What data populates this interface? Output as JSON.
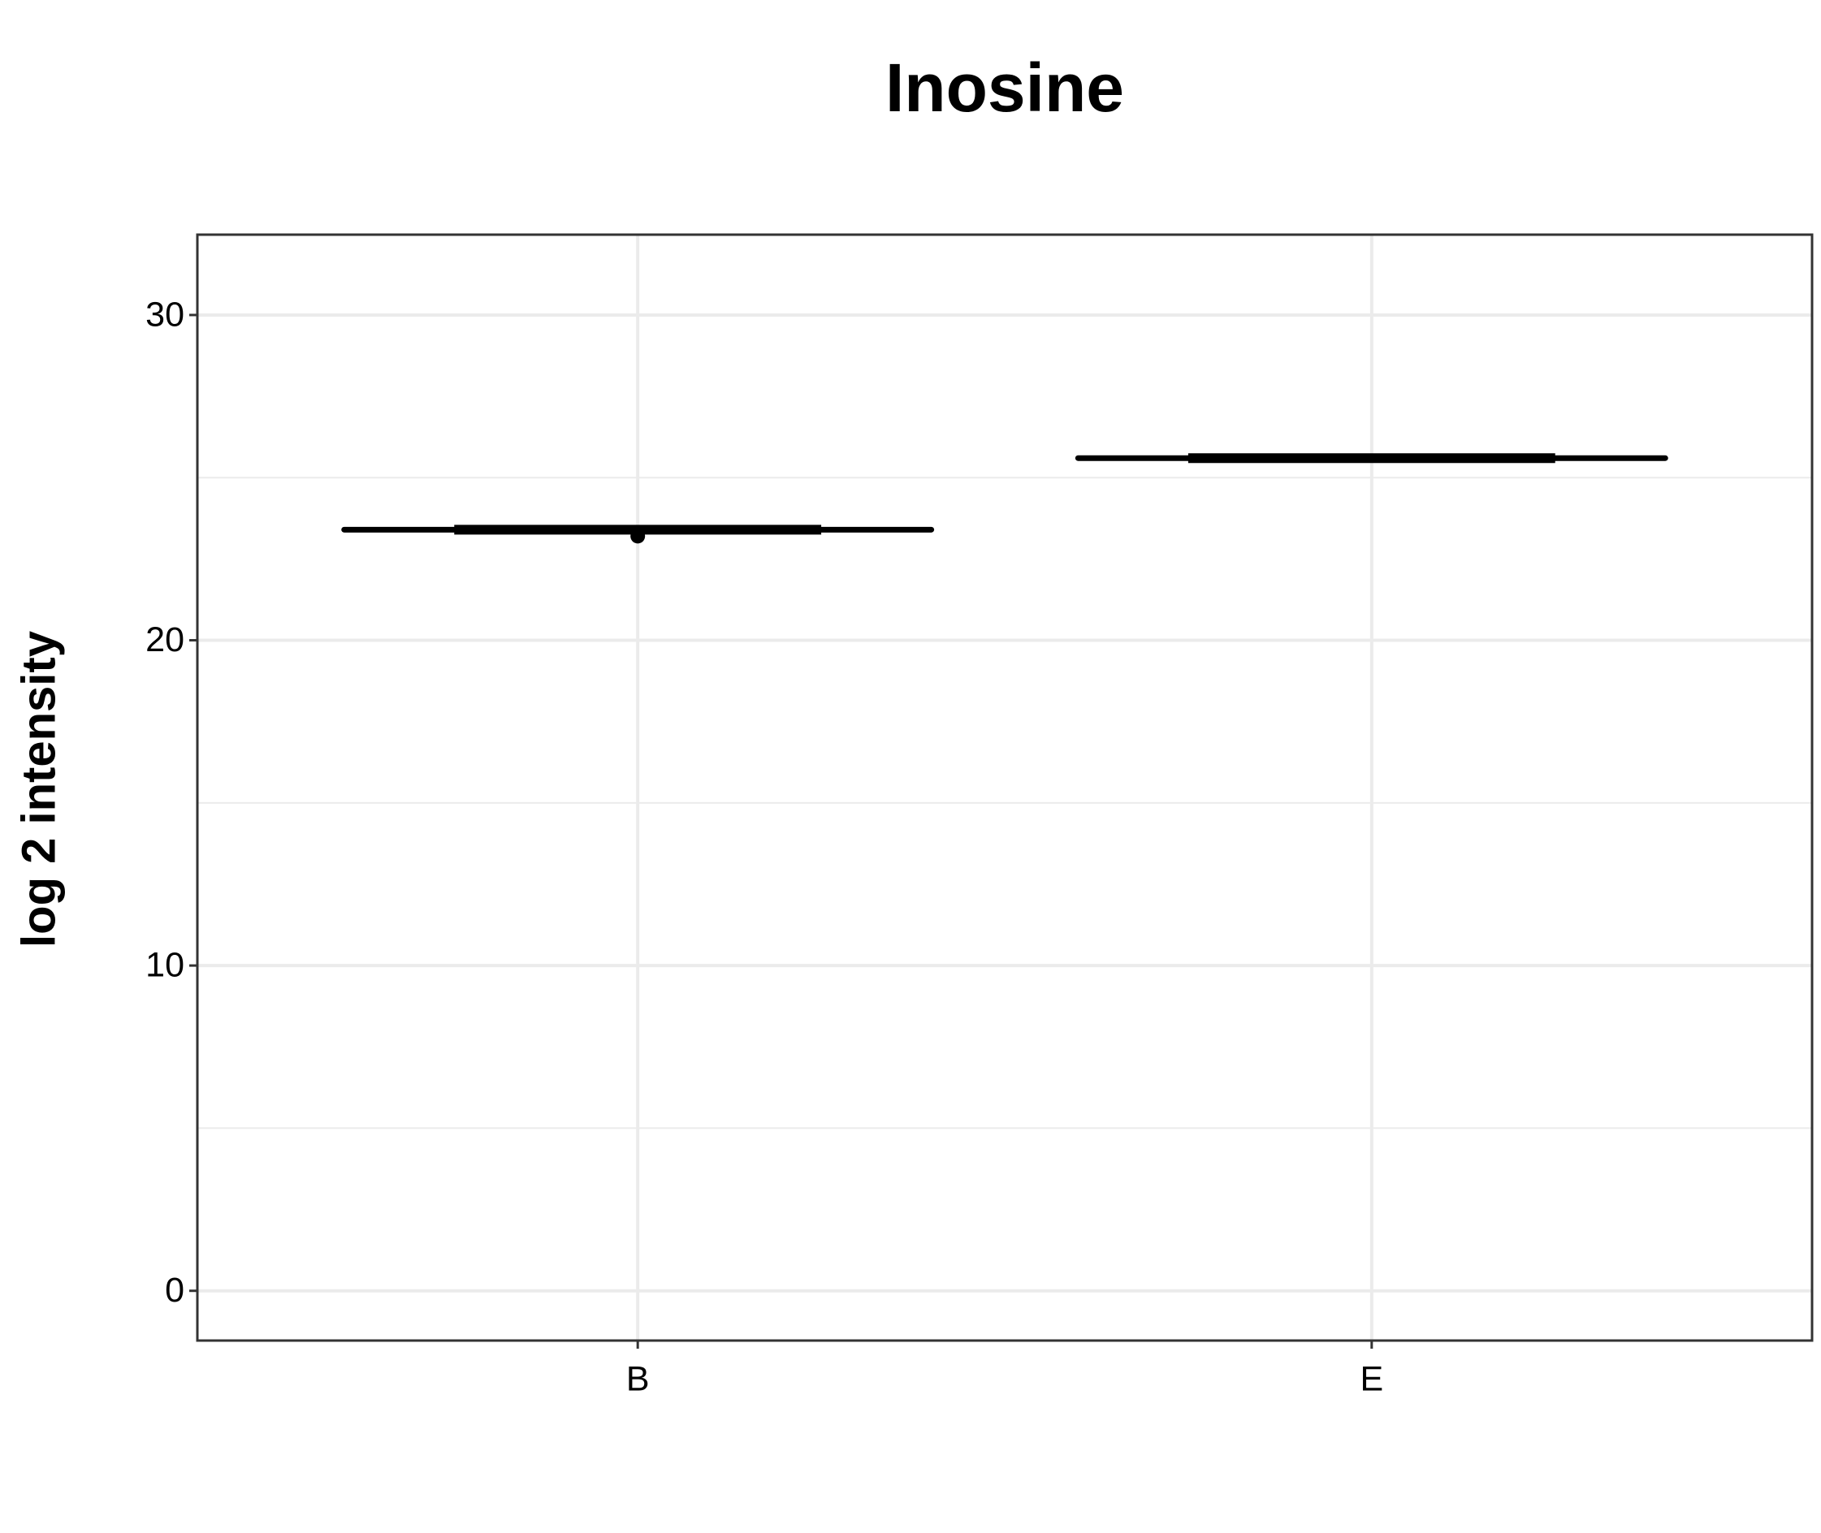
{
  "chart_data": {
    "type": "box",
    "title": "Inosine",
    "y_label": "log 2 intensity",
    "categories": [
      "B",
      "E"
    ],
    "series": [
      {
        "color": "#000000",
        "values": [
          23.4,
          25.6
        ]
      }
    ],
    "points": [
      23.2,
      null
    ],
    "ylim": [
      -1.53,
      32.47
    ],
    "yticks": [
      0,
      10,
      20,
      30
    ],
    "minor_yticks": [
      5,
      15,
      25
    ],
    "grid": true
  }
}
